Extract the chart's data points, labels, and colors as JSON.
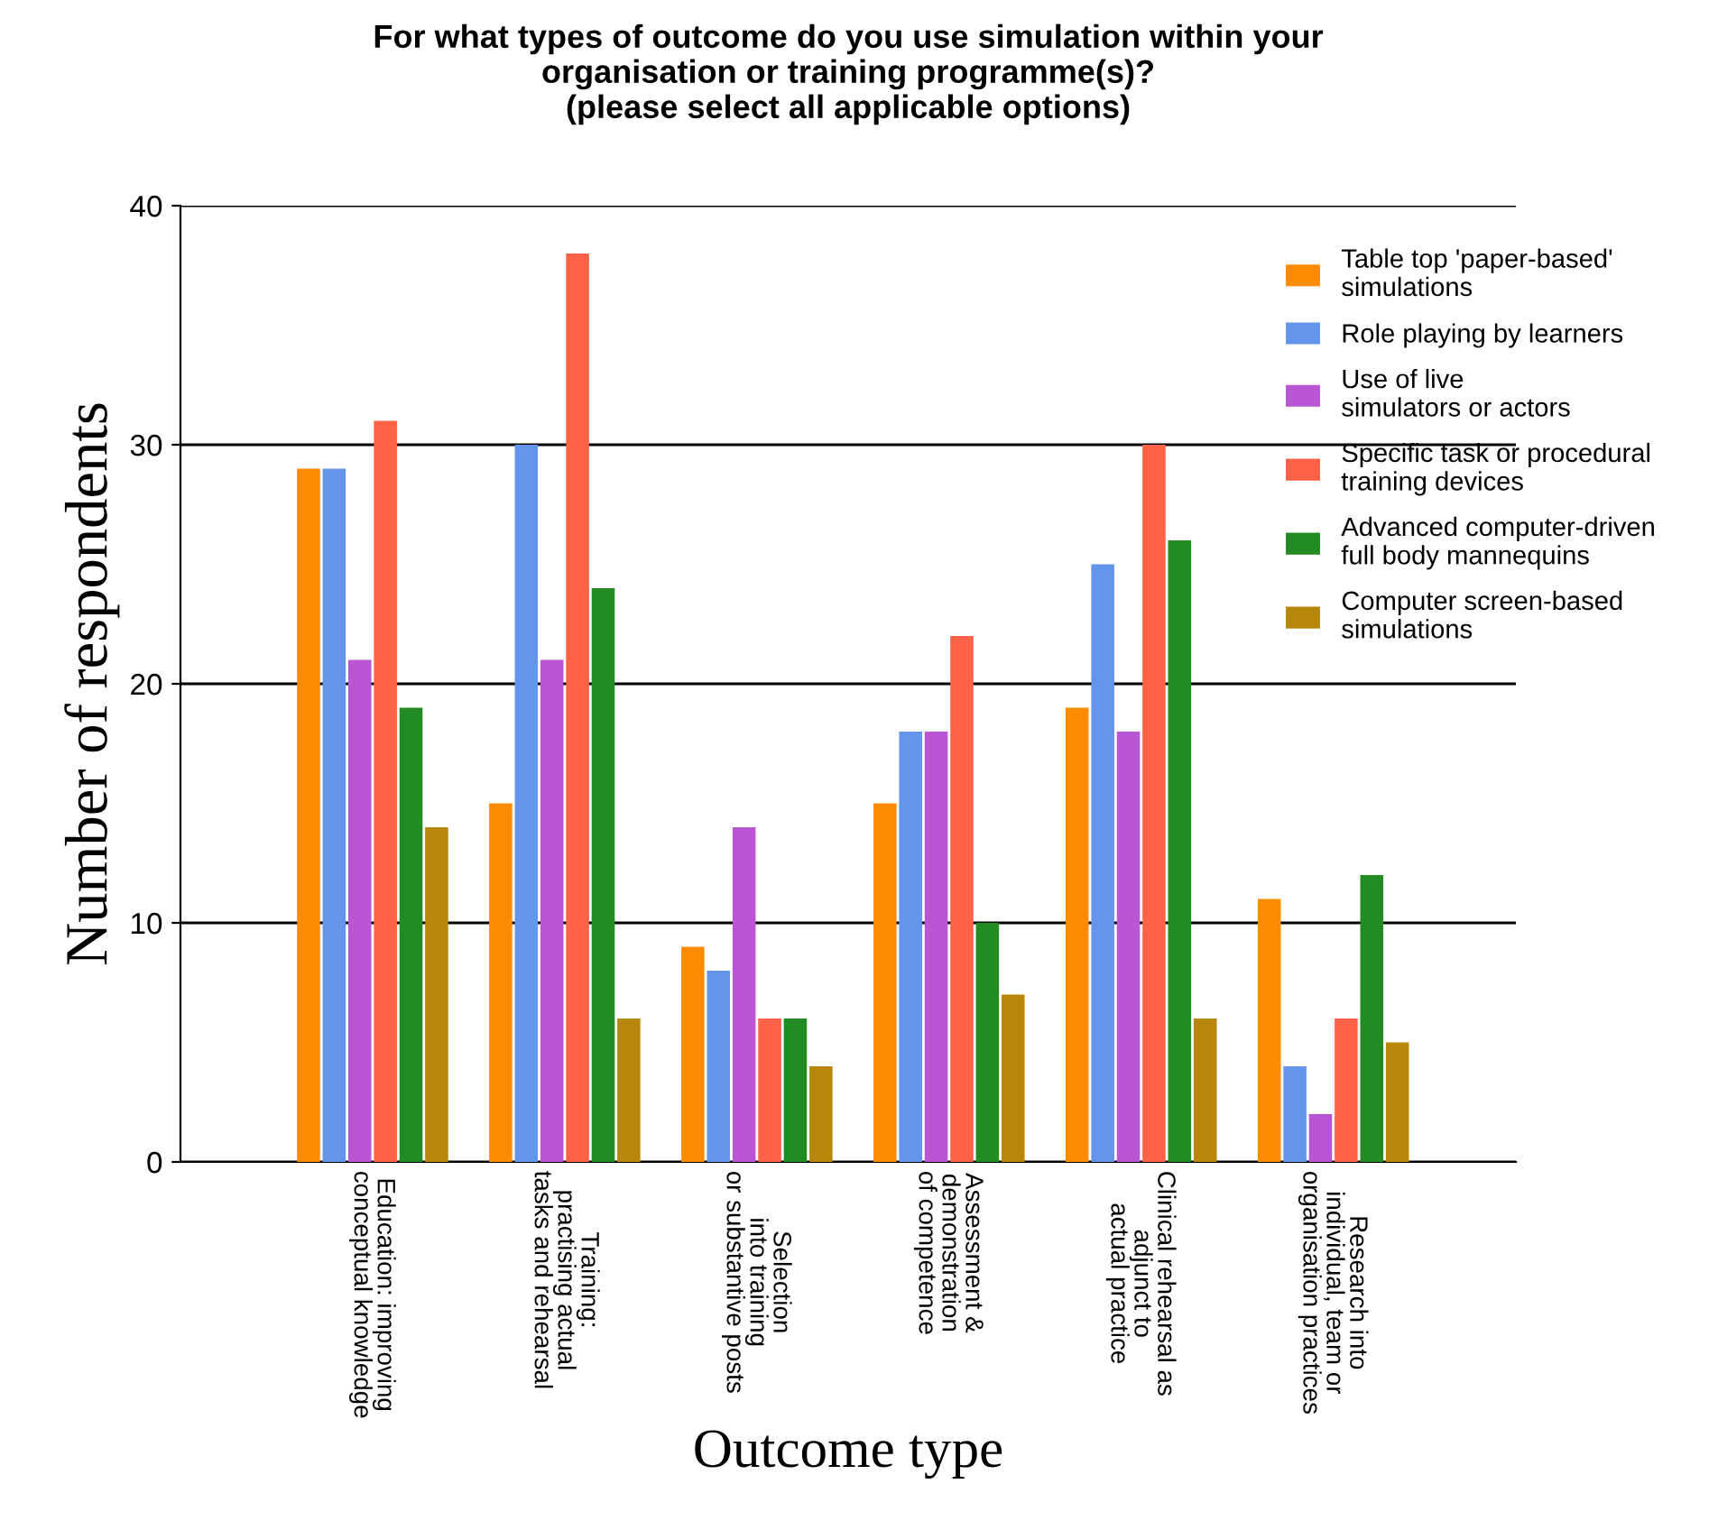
{
  "chart_data": {
    "type": "bar",
    "title": "For what types of outcome do you use simulation within your\norganisation or training programme(s)?\n(please select all applicable options)",
    "xlabel": "Outcome type",
    "ylabel": "Number of respondents",
    "categories": [
      "Education: improving\nconceptual knowledge",
      "Training:\npractising actual\ntasks and rehearsal",
      "Selection\ninto training\nor substantive posts",
      "Assessment &\ndemonstration\nof competence",
      "Clinical rehearsal as\nadjunct to\nactual practice",
      "Research into\nindividual, team or\norganisation practices"
    ],
    "series": [
      {
        "name": "Table top 'paper-based'\nsimulations",
        "color": "#ff8c00",
        "values": [
          29,
          15,
          9,
          15,
          19,
          11
        ]
      },
      {
        "name": "Role playing by learners",
        "color": "#6495ed",
        "values": [
          29,
          30,
          8,
          18,
          25,
          4
        ]
      },
      {
        "name": "Use of live\nsimulators or actors",
        "color": "#ba55d3",
        "values": [
          21,
          21,
          14,
          18,
          18,
          2
        ]
      },
      {
        "name": "Specific task or procedural\ntraining devices",
        "color": "#ff6347",
        "values": [
          31,
          38,
          6,
          22,
          30,
          6
        ]
      },
      {
        "name": "Advanced computer-driven\nfull body mannequins",
        "color": "#228b22",
        "values": [
          19,
          24,
          6,
          10,
          26,
          12
        ]
      },
      {
        "name": "Computer screen-based\nsimulations",
        "color": "#b8860b",
        "values": [
          14,
          6,
          4,
          7,
          6,
          5
        ]
      }
    ],
    "ylim": [
      0,
      40
    ],
    "yticks": [
      0,
      10,
      20,
      30,
      40
    ],
    "grid": "y",
    "legend": "top right"
  }
}
